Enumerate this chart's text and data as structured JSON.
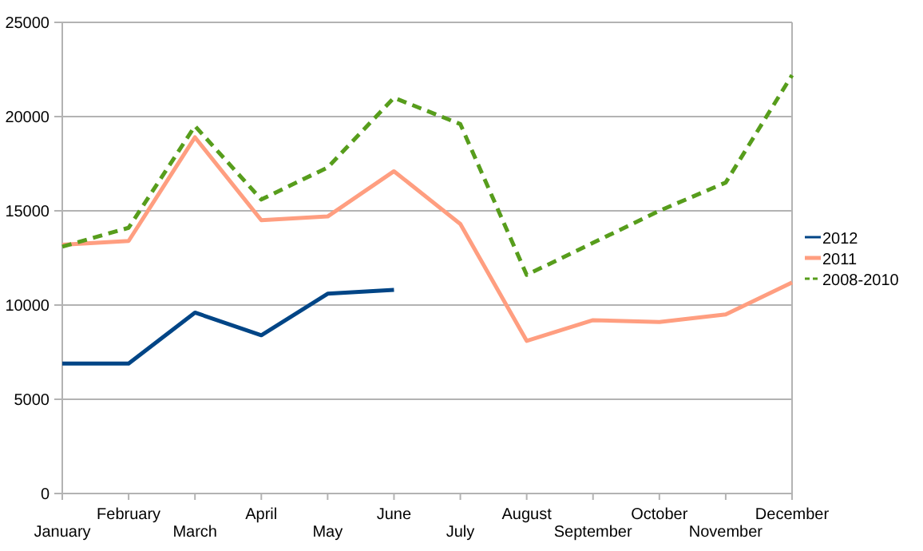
{
  "chart_data": {
    "type": "line",
    "categories": [
      "January",
      "February",
      "March",
      "April",
      "May",
      "June",
      "July",
      "August",
      "September",
      "October",
      "November",
      "December"
    ],
    "series": [
      {
        "name": "2012",
        "color": "#004586",
        "values": [
          6900,
          6900,
          9600,
          8400,
          10600,
          10800,
          null,
          null,
          null,
          null,
          null,
          null
        ]
      },
      {
        "name": "2011",
        "color": "#ff9e80",
        "values": [
          13200,
          13400,
          18900,
          14500,
          14700,
          17100,
          14300,
          8100,
          9200,
          9100,
          9500,
          11200
        ]
      },
      {
        "name": "2008-2010",
        "color": "#579d1c",
        "line_style": "dashed",
        "values": [
          13100,
          14100,
          19500,
          15600,
          17300,
          21000,
          19600,
          11600,
          13300,
          15000,
          16500,
          22200
        ]
      }
    ],
    "ylim": [
      0,
      25000
    ],
    "yticks": [
      0,
      5000,
      10000,
      15000,
      20000,
      25000
    ],
    "grid": "y",
    "legend": "right",
    "marker": "none"
  }
}
